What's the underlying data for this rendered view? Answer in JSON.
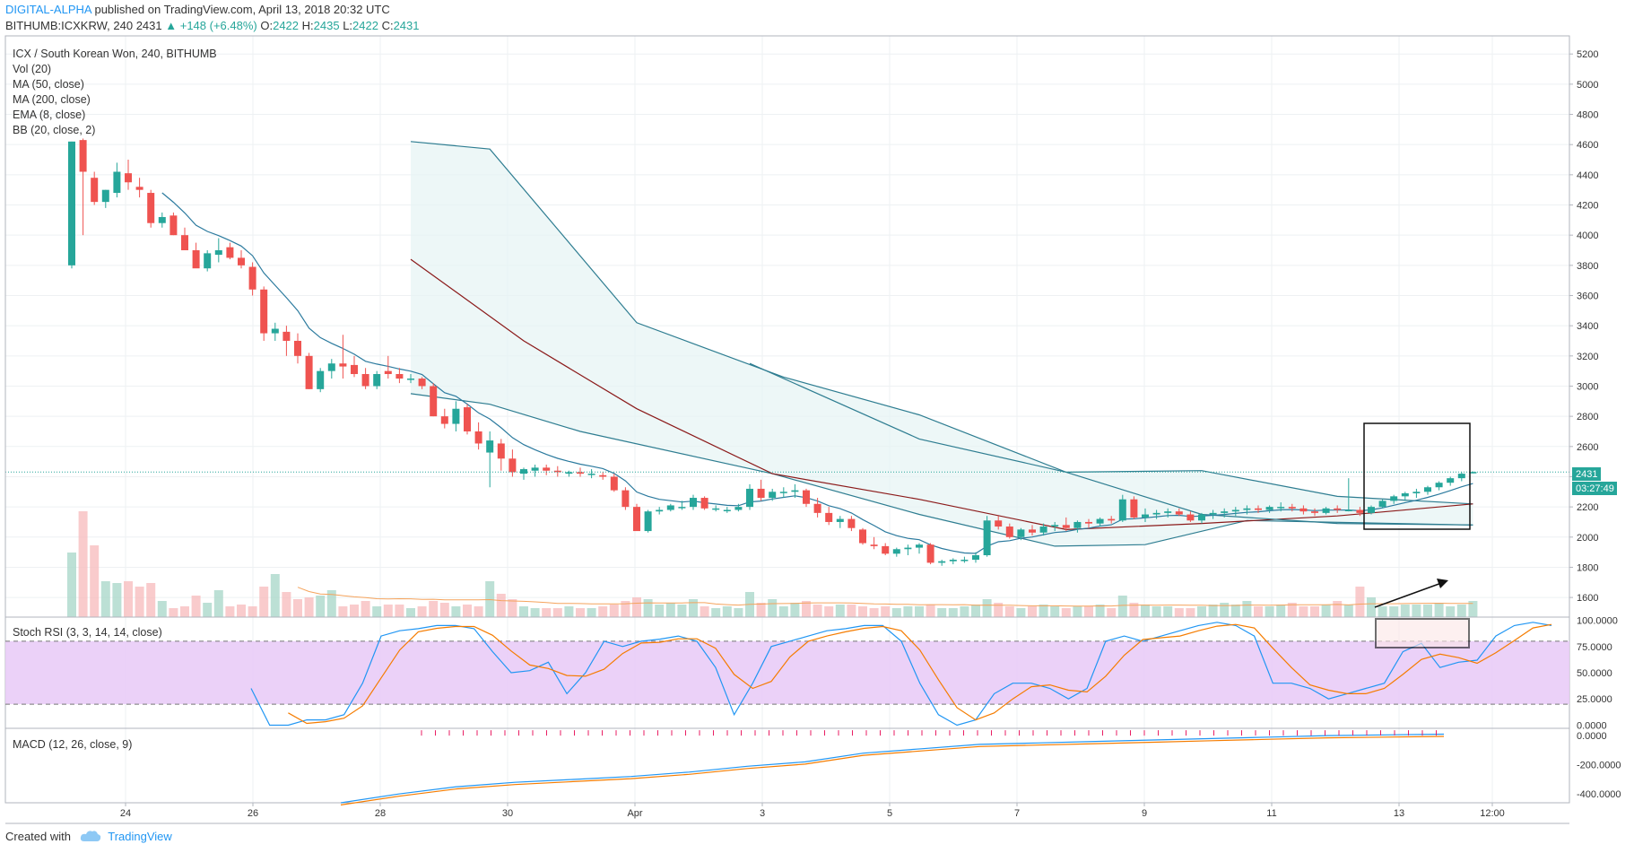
{
  "header": {
    "author": "DIGITAL-ALPHA",
    "published_text": "published on TradingView.com, April 13, 2018 20:32 UTC",
    "symbol": "BITHUMB:ICXKRW, 240",
    "last": "2431",
    "change": "▲ +148 (+6.48%)",
    "o_label": "O:",
    "o_value": "2422",
    "h_label": "H:",
    "h_value": "2435",
    "l_label": "L:",
    "l_value": "2422",
    "c_label": "C:",
    "c_value": "2431"
  },
  "legend": {
    "title": "ICX / South Korean Won, 240, BITHUMB",
    "items": [
      "Vol (20)",
      "MA (50, close)",
      "MA (200, close)",
      "EMA (8, close)",
      "BB (20, close, 2)"
    ]
  },
  "price_label": "2431",
  "countdown": "03:27:49",
  "stoch_title": "Stoch RSI (3, 3, 14, 14, close)",
  "macd_title": "MACD (12, 26, close, 9)",
  "footer": {
    "created": "Created with",
    "brand": "TradingView"
  },
  "colors": {
    "up": "#26a69a",
    "down": "#ef5350",
    "bb": "#2e7d91",
    "ma50": "#8b1a1a",
    "stoch_k": "#2196f3",
    "stoch_d": "#f57c00"
  },
  "chart_data": {
    "type": "candlestick",
    "x_ticks": [
      "24",
      "26",
      "28",
      "30",
      "Apr",
      "3",
      "5",
      "7",
      "9",
      "11",
      "13",
      "12:00"
    ],
    "price_axis": {
      "ticks": [
        1600,
        1800,
        2000,
        2200,
        2400,
        2600,
        2800,
        3000,
        3200,
        3400,
        3600,
        3800,
        4000,
        4200,
        4400,
        4600,
        4800,
        5000,
        5200
      ],
      "range": [
        1470,
        5320
      ]
    },
    "stoch_axis": {
      "ticks": [
        "0.0000",
        "25.0000",
        "50.0000",
        "75.0000",
        "100.0000"
      ],
      "range": [
        -3,
        103
      ],
      "band": [
        20,
        80
      ]
    },
    "macd_axis": {
      "ticks": [
        "-400.0000",
        "-200.0000",
        "0.0000"
      ],
      "range": [
        -460,
        50
      ]
    },
    "candles": [
      [
        3800,
        4620,
        3780,
        4620
      ],
      [
        4630,
        4640,
        4000,
        4420
      ],
      [
        4380,
        4420,
        4200,
        4220
      ],
      [
        4220,
        4300,
        4180,
        4300
      ],
      [
        4280,
        4480,
        4250,
        4420
      ],
      [
        4410,
        4500,
        4300,
        4350
      ],
      [
        4320,
        4380,
        4250,
        4300
      ],
      [
        4280,
        4300,
        4050,
        4080
      ],
      [
        4080,
        4150,
        4050,
        4120
      ],
      [
        4130,
        4150,
        4000,
        4000
      ],
      [
        4000,
        4050,
        3900,
        3900
      ],
      [
        3900,
        3950,
        3800,
        3780
      ],
      [
        3780,
        3900,
        3760,
        3880
      ],
      [
        3870,
        3980,
        3820,
        3900
      ],
      [
        3920,
        3950,
        3840,
        3850
      ],
      [
        3850,
        3900,
        3780,
        3800
      ],
      [
        3790,
        3820,
        3600,
        3640
      ],
      [
        3640,
        3660,
        3300,
        3350
      ],
      [
        3350,
        3420,
        3300,
        3380
      ],
      [
        3360,
        3400,
        3200,
        3300
      ],
      [
        3300,
        3350,
        3150,
        3200
      ],
      [
        3200,
        3220,
        2980,
        2980
      ],
      [
        2980,
        3120,
        2960,
        3100
      ],
      [
        3100,
        3180,
        3050,
        3150
      ],
      [
        3150,
        3340,
        3050,
        3130
      ],
      [
        3140,
        3200,
        3060,
        3080
      ],
      [
        3080,
        3120,
        2980,
        3000
      ],
      [
        3000,
        3100,
        2980,
        3080
      ],
      [
        3100,
        3200,
        3050,
        3080
      ],
      [
        3080,
        3120,
        3020,
        3050
      ],
      [
        3050,
        3080,
        3020,
        3050
      ],
      [
        3050,
        3060,
        2980,
        3000
      ],
      [
        3000,
        3020,
        2800,
        2800
      ],
      [
        2800,
        2850,
        2720,
        2750
      ],
      [
        2750,
        2900,
        2700,
        2850
      ],
      [
        2860,
        2880,
        2680,
        2700
      ],
      [
        2700,
        2760,
        2580,
        2620
      ],
      [
        2560,
        2700,
        2330,
        2640
      ],
      [
        2620,
        2650,
        2440,
        2520
      ],
      [
        2520,
        2580,
        2400,
        2430
      ],
      [
        2420,
        2460,
        2380,
        2450
      ],
      [
        2440,
        2480,
        2400,
        2460
      ],
      [
        2460,
        2480,
        2410,
        2440
      ],
      [
        2440,
        2470,
        2400,
        2430
      ],
      [
        2420,
        2440,
        2400,
        2430
      ],
      [
        2430,
        2460,
        2400,
        2420
      ],
      [
        2420,
        2450,
        2390,
        2420
      ],
      [
        2410,
        2430,
        2380,
        2400
      ],
      [
        2400,
        2420,
        2300,
        2310
      ],
      [
        2310,
        2330,
        2180,
        2200
      ],
      [
        2200,
        2220,
        2040,
        2040
      ],
      [
        2040,
        2180,
        2030,
        2170
      ],
      [
        2170,
        2200,
        2150,
        2180
      ],
      [
        2180,
        2220,
        2170,
        2210
      ],
      [
        2200,
        2240,
        2180,
        2200
      ],
      [
        2200,
        2280,
        2180,
        2260
      ],
      [
        2260,
        2270,
        2180,
        2190
      ],
      [
        2190,
        2210,
        2170,
        2190
      ],
      [
        2180,
        2200,
        2160,
        2180
      ],
      [
        2180,
        2220,
        2170,
        2200
      ],
      [
        2200,
        2350,
        2180,
        2320
      ],
      [
        2320,
        2380,
        2240,
        2260
      ],
      [
        2260,
        2320,
        2240,
        2300
      ],
      [
        2300,
        2330,
        2260,
        2300
      ],
      [
        2300,
        2350,
        2260,
        2310
      ],
      [
        2310,
        2320,
        2200,
        2220
      ],
      [
        2220,
        2260,
        2130,
        2160
      ],
      [
        2160,
        2200,
        2080,
        2100
      ],
      [
        2100,
        2140,
        2060,
        2120
      ],
      [
        2120,
        2140,
        2040,
        2060
      ],
      [
        2050,
        2060,
        1950,
        1960
      ],
      [
        1950,
        2000,
        1920,
        1940
      ],
      [
        1940,
        1960,
        1880,
        1890
      ],
      [
        1890,
        1930,
        1870,
        1920
      ],
      [
        1920,
        1950,
        1880,
        1930
      ],
      [
        1930,
        1960,
        1890,
        1950
      ],
      [
        1950,
        1960,
        1820,
        1830
      ],
      [
        1830,
        1850,
        1810,
        1840
      ],
      [
        1840,
        1860,
        1820,
        1850
      ],
      [
        1850,
        1870,
        1830,
        1850
      ],
      [
        1850,
        1900,
        1830,
        1880
      ],
      [
        1880,
        2140,
        1870,
        2110
      ],
      [
        2110,
        2140,
        2050,
        2070
      ],
      [
        2070,
        2090,
        1990,
        2000
      ],
      [
        2000,
        2060,
        1980,
        2050
      ],
      [
        2050,
        2080,
        2010,
        2030
      ],
      [
        2030,
        2090,
        2010,
        2070
      ],
      [
        2070,
        2100,
        2040,
        2080
      ],
      [
        2080,
        2130,
        2040,
        2060
      ],
      [
        2060,
        2110,
        2030,
        2100
      ],
      [
        2100,
        2120,
        2060,
        2090
      ],
      [
        2090,
        2130,
        2070,
        2120
      ],
      [
        2120,
        2140,
        2090,
        2110
      ],
      [
        2110,
        2280,
        2100,
        2250
      ],
      [
        2250,
        2270,
        2120,
        2130
      ],
      [
        2130,
        2190,
        2100,
        2150
      ],
      [
        2150,
        2180,
        2120,
        2160
      ],
      [
        2160,
        2190,
        2130,
        2170
      ],
      [
        2170,
        2190,
        2140,
        2150
      ],
      [
        2150,
        2170,
        2100,
        2110
      ],
      [
        2110,
        2160,
        2090,
        2150
      ],
      [
        2150,
        2180,
        2120,
        2160
      ],
      [
        2160,
        2190,
        2130,
        2170
      ],
      [
        2170,
        2200,
        2140,
        2180
      ],
      [
        2180,
        2210,
        2150,
        2190
      ],
      [
        2190,
        2210,
        2160,
        2180
      ],
      [
        2180,
        2210,
        2160,
        2200
      ],
      [
        2200,
        2230,
        2170,
        2200
      ],
      [
        2200,
        2220,
        2170,
        2190
      ],
      [
        2190,
        2210,
        2150,
        2170
      ],
      [
        2170,
        2190,
        2140,
        2160
      ],
      [
        2160,
        2200,
        2150,
        2190
      ],
      [
        2190,
        2210,
        2160,
        2180
      ],
      [
        2180,
        2390,
        2170,
        2180
      ],
      [
        2180,
        2200,
        2140,
        2160
      ],
      [
        2160,
        2210,
        2150,
        2200
      ],
      [
        2200,
        2250,
        2190,
        2240
      ],
      [
        2240,
        2280,
        2220,
        2270
      ],
      [
        2270,
        2300,
        2240,
        2290
      ],
      [
        2290,
        2320,
        2260,
        2300
      ],
      [
        2300,
        2340,
        2280,
        2330
      ],
      [
        2330,
        2370,
        2310,
        2360
      ],
      [
        2360,
        2400,
        2340,
        2390
      ],
      [
        2390,
        2430,
        2370,
        2420
      ],
      [
        2422,
        2435,
        2422,
        2431
      ]
    ],
    "volume": [
      72,
      118,
      80,
      40,
      38,
      40,
      34,
      38,
      18,
      10,
      12,
      24,
      16,
      30,
      12,
      14,
      12,
      34,
      48,
      28,
      20,
      22,
      24,
      30,
      12,
      14,
      18,
      12,
      14,
      14,
      10,
      12,
      18,
      16,
      12,
      14,
      12,
      40,
      26,
      20,
      12,
      10,
      10,
      10,
      12,
      10,
      10,
      12,
      14,
      18,
      22,
      20,
      14,
      16,
      14,
      20,
      12,
      10,
      12,
      10,
      28,
      16,
      20,
      12,
      16,
      18,
      14,
      12,
      14,
      14,
      12,
      10,
      12,
      10,
      12,
      12,
      14,
      10,
      10,
      12,
      14,
      20,
      16,
      12,
      10,
      12,
      14,
      12,
      10,
      12,
      12,
      14,
      10,
      24,
      16,
      14,
      12,
      12,
      10,
      10,
      12,
      14,
      16,
      14,
      18,
      12,
      12,
      14,
      16,
      12,
      12,
      14,
      18,
      14,
      34,
      22,
      12,
      12,
      14,
      14,
      14,
      16,
      12,
      14,
      18
    ],
    "overlays": {
      "bb_upper": [
        [
          30,
          4620
        ],
        [
          37,
          4570
        ],
        [
          50,
          3420
        ],
        [
          63,
          3060
        ],
        [
          75,
          2810
        ],
        [
          88,
          2430
        ],
        [
          100,
          2440
        ],
        [
          112,
          2270
        ],
        [
          124,
          2220
        ]
      ],
      "bb_lower": [
        [
          30,
          2950
        ],
        [
          37,
          2880
        ],
        [
          45,
          2700
        ],
        [
          62,
          2420
        ],
        [
          75,
          2150
        ],
        [
          87,
          1940
        ],
        [
          95,
          1950
        ],
        [
          104,
          2110
        ],
        [
          124,
          2080
        ]
      ],
      "ma50": [
        [
          30,
          3840
        ],
        [
          40,
          3300
        ],
        [
          50,
          2850
        ],
        [
          62,
          2420
        ],
        [
          75,
          2250
        ],
        [
          88,
          2050
        ],
        [
          100,
          2090
        ],
        [
          112,
          2140
        ],
        [
          124,
          2220
        ]
      ],
      "ma200": [
        [
          60,
          3150
        ],
        [
          75,
          2650
        ],
        [
          88,
          2430
        ],
        [
          100,
          2150
        ],
        [
          112,
          2090
        ],
        [
          124,
          2080
        ]
      ]
    }
  }
}
